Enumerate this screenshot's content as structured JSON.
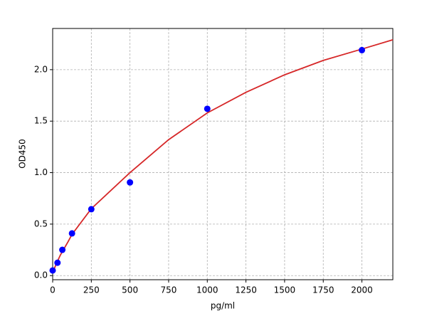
{
  "chart_data": {
    "type": "scatter",
    "xlabel": "pg/ml",
    "ylabel": "OD450",
    "xlim": [
      0,
      2200
    ],
    "ylim": [
      -0.04,
      2.4
    ],
    "xticks": [
      0,
      250,
      500,
      750,
      1000,
      1250,
      1500,
      1750,
      2000
    ],
    "yticks": [
      {
        "value": 0,
        "label": "0.0"
      },
      0.5,
      {
        "value": 1,
        "label": "1.0"
      },
      1.5,
      {
        "value": 2,
        "label": "2.0"
      }
    ],
    "grid": true,
    "series": [
      {
        "type": "scatter",
        "color": "#0000ff",
        "x": [
          0,
          31.25,
          62.5,
          125,
          250,
          500,
          1000,
          2000
        ],
        "values": [
          0.05,
          0.125,
          0.25,
          0.41,
          0.645,
          0.905,
          1.62,
          2.19
        ]
      },
      {
        "type": "line",
        "color": "#d62728",
        "x": [
          0,
          25,
          50,
          100,
          125,
          250,
          500,
          750,
          1000,
          1250,
          1500,
          1750,
          2000,
          2200
        ],
        "values": [
          0.03,
          0.12,
          0.2,
          0.33,
          0.4,
          0.65,
          1.0,
          1.32,
          1.58,
          1.78,
          1.95,
          2.09,
          2.2,
          2.29
        ]
      }
    ]
  }
}
